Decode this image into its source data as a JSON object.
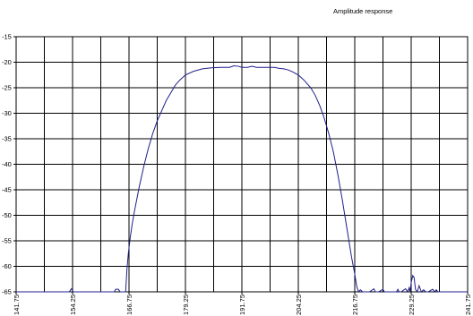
{
  "chart_data": {
    "type": "line",
    "title": "Amplitude response",
    "xlabel": "",
    "ylabel": "",
    "xlim": [
      141.75,
      241.75
    ],
    "ylim": [
      -65,
      -15
    ],
    "grid": true,
    "x_ticks": [
      141.75,
      154.25,
      166.75,
      179.25,
      191.75,
      204.25,
      216.75,
      229.25,
      241.75
    ],
    "x_tick_labels": [
      "141.75",
      "154.25",
      "166.75",
      "179.25",
      "191.75",
      "204.25",
      "216.75",
      "229.25",
      "241.75"
    ],
    "y_ticks": [
      -15,
      -20,
      -25,
      -30,
      -35,
      -40,
      -45,
      -50,
      -55,
      -60,
      -65
    ],
    "y_tick_labels": [
      "-15",
      "-20",
      "-25",
      "-30",
      "-35",
      "-40",
      "-45",
      "-50",
      "-55",
      "-60",
      "-65"
    ],
    "line_color": "#1f1f8c",
    "series": [
      {
        "x": [
          141.75,
          150.0,
          153.5,
          154.0,
          154.4,
          154.9,
          160.0,
          163.5,
          163.8,
          164.4,
          164.8,
          165.5,
          166.0,
          166.3,
          166.6,
          167.0,
          167.5,
          168.0,
          169.0,
          170.0,
          171.0,
          172.0,
          173.0,
          174.0,
          175.0,
          176.0,
          177.0,
          178.0,
          179.25,
          181.0,
          183.0,
          185.0,
          187.0,
          189.0,
          190.0,
          191.0,
          191.75,
          193.0,
          194.0,
          195.0,
          196.0,
          197.0,
          198.0,
          199.0,
          200.0,
          201.0,
          202.0,
          203.0,
          204.25,
          205.5,
          207.0,
          208.0,
          209.0,
          210.0,
          211.0,
          212.0,
          213.0,
          214.0,
          215.0,
          216.0,
          216.75,
          217.2,
          217.6,
          218.0,
          218.5,
          219.0,
          220.0,
          221.0,
          221.3,
          221.6,
          222.0,
          223.0,
          223.3,
          223.6,
          225.0,
          226.0,
          226.3,
          226.6,
          227.0,
          228.0,
          228.5,
          228.8,
          229.0,
          229.25,
          229.6,
          229.9,
          230.2,
          230.6,
          231.0,
          231.5,
          232.0,
          232.5,
          233.0,
          234.0,
          234.5,
          234.8,
          235.2,
          237.0,
          239.0,
          241.75
        ],
        "y": [
          -65,
          -65,
          -65,
          -64.4,
          -65,
          -65,
          -65,
          -65,
          -64.5,
          -64.5,
          -65,
          -65,
          -65,
          -60.5,
          -57.5,
          -54.5,
          -51.5,
          -49,
          -44.5,
          -40.5,
          -37,
          -34,
          -31.5,
          -29.5,
          -27.5,
          -26,
          -24.5,
          -23.5,
          -22.5,
          -21.8,
          -21.3,
          -21.1,
          -21.0,
          -21.0,
          -20.7,
          -20.8,
          -21.0,
          -21.0,
          -20.8,
          -21.0,
          -21.0,
          -21.0,
          -21.0,
          -21.0,
          -21.2,
          -21.3,
          -21.5,
          -21.9,
          -22.5,
          -23.5,
          -25,
          -26.5,
          -28.5,
          -31,
          -34,
          -37.5,
          -42,
          -47,
          -52.5,
          -58,
          -61.5,
          -64,
          -65,
          -64.6,
          -65,
          -65,
          -65,
          -64.4,
          -65,
          -65,
          -65,
          -64.5,
          -65,
          -65,
          -65,
          -65,
          -64.5,
          -65,
          -65,
          -64.4,
          -65,
          -64.2,
          -65,
          -63.2,
          -61.8,
          -62.2,
          -64.5,
          -65,
          -63.8,
          -65,
          -64.6,
          -65,
          -65,
          -64.5,
          -65,
          -64.6,
          -65,
          -65,
          -65,
          -65
        ]
      }
    ]
  }
}
